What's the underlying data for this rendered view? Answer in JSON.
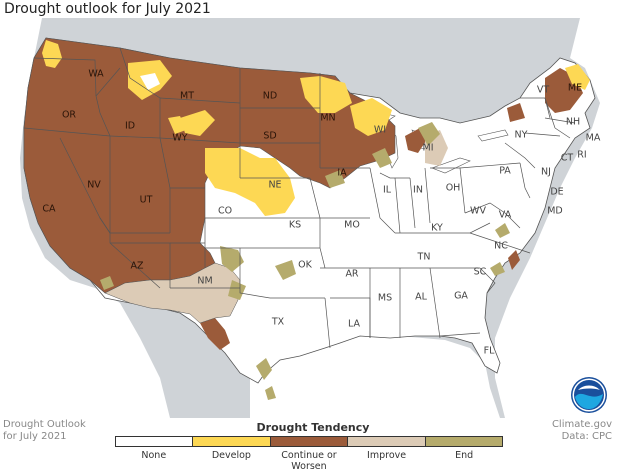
{
  "title": "Drought outlook for July 2021",
  "footer": {
    "left_line1": "Drought Outlook",
    "left_line2": "for July 2021",
    "right_line1": "Climate.gov",
    "right_line2": "Data: CPC"
  },
  "legend": {
    "title": "Drought Tendency",
    "items": [
      {
        "label": "None",
        "color": "#ffffff"
      },
      {
        "label": "Develop",
        "color": "#fdd854"
      },
      {
        "label": "Continue or\nWorsen",
        "color": "#9b5b3a"
      },
      {
        "label": "Improve",
        "color": "#dccbb6"
      },
      {
        "label": "End",
        "color": "#b5ab6c"
      }
    ]
  },
  "colors": {
    "land_background": "#cfd3d7",
    "water": "#ffffff",
    "state_border": "#555555"
  },
  "logo": "noaa-logo-icon",
  "states": {
    "WA": "WA",
    "OR": "OR",
    "CA": "CA",
    "ID": "ID",
    "NV": "NV",
    "MT": "MT",
    "WY": "WY",
    "UT": "UT",
    "AZ": "AZ",
    "CO": "CO",
    "NM": "NM",
    "ND": "ND",
    "SD": "SD",
    "NE": "NE",
    "KS": "KS",
    "OK": "OK",
    "TX": "TX",
    "MN": "MN",
    "IA": "IA",
    "MO": "MO",
    "AR": "AR",
    "LA": "LA",
    "WI": "WI",
    "IL": "IL",
    "MI": "MI",
    "IN": "IN",
    "OH": "OH",
    "KY": "KY",
    "TN": "TN",
    "MS": "MS",
    "AL": "AL",
    "GA": "GA",
    "FL": "FL",
    "SC": "SC",
    "NC": "NC",
    "VA": "VA",
    "WV": "WV",
    "PA": "PA",
    "NY": "NY",
    "VT": "VT",
    "NH": "NH",
    "ME": "ME",
    "MA": "MA",
    "CT": "CT",
    "RI": "RI",
    "NJ": "NJ",
    "DE": "DE",
    "MD": "MD"
  }
}
